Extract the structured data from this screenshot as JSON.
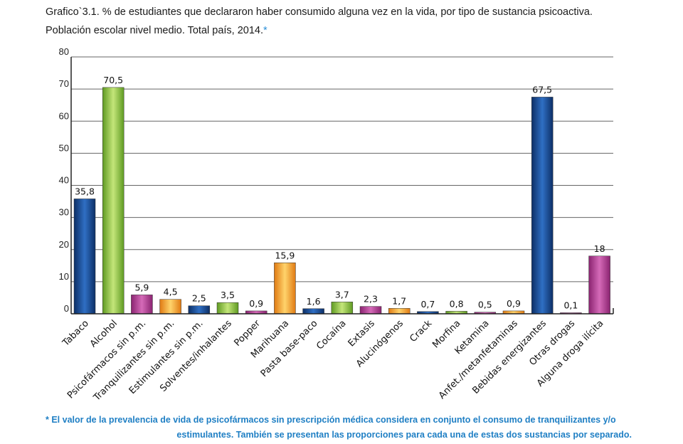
{
  "header": {
    "title_line1": "Grafico`3.1. % de estudiantes que declararon haber consumido alguna vez en la vida, por tipo de sustancia psicoactiva.",
    "title_line2": "Población escolar nivel medio. Total país, 2014.",
    "title_star": "*"
  },
  "footnote": {
    "line1": "* El valor de la prevalencia de vida de psicofármacos sin prescripción médica considera en conjunto el consumo de tranquilizantes y/o",
    "line2": "estimulantes. También se presentan las proporciones para cada una de estas dos sustancias por separado."
  },
  "colors": {
    "blue": "#1a4f96",
    "green": "#8cc63f",
    "magenta": "#b63a92",
    "orange": "#f5a623",
    "grid": "#666666",
    "axis": "#222222"
  },
  "chart_data": {
    "type": "bar",
    "ylim": [
      0,
      80
    ],
    "yticks": [
      "0",
      "10",
      "20",
      "30",
      "40",
      "50",
      "60",
      "70",
      "80"
    ],
    "grid": true,
    "categories": [
      "Tabaco",
      "Alcohol",
      "Psicofármacos sin p.m.",
      "Tranquilizantes sin p.m.",
      "Estimulantes sin p.m.",
      "Solventes/inhalantes",
      "Popper",
      "Marihuana",
      "Pasta base-paco",
      "Cocaína",
      "Extasis",
      "Alucinógenos",
      "Crack",
      "Morfina",
      "Ketamina",
      "Anfet./metanfetaminas",
      "Bebidas energizantes",
      "Otras drogas",
      "Alguna droga ilícita"
    ],
    "values": [
      35.8,
      70.5,
      5.9,
      4.5,
      2.5,
      3.5,
      0.9,
      15.9,
      1.6,
      3.7,
      2.3,
      1.7,
      0.7,
      0.8,
      0.5,
      0.9,
      67.5,
      0.1,
      18
    ],
    "value_labels": [
      "35,8",
      "70,5",
      "5,9",
      "4,5",
      "2,5",
      "3,5",
      "0,9",
      "15,9",
      "1,6",
      "3,7",
      "2,3",
      "1,7",
      "0,7",
      "0,8",
      "0,5",
      "0,9",
      "67,5",
      "0,1",
      "18"
    ],
    "bar_colors": [
      "blue",
      "green",
      "magenta",
      "orange",
      "blue",
      "green",
      "magenta",
      "orange",
      "blue",
      "green",
      "magenta",
      "orange",
      "blue",
      "green",
      "magenta",
      "orange",
      "blue",
      "magenta",
      "magenta"
    ]
  }
}
